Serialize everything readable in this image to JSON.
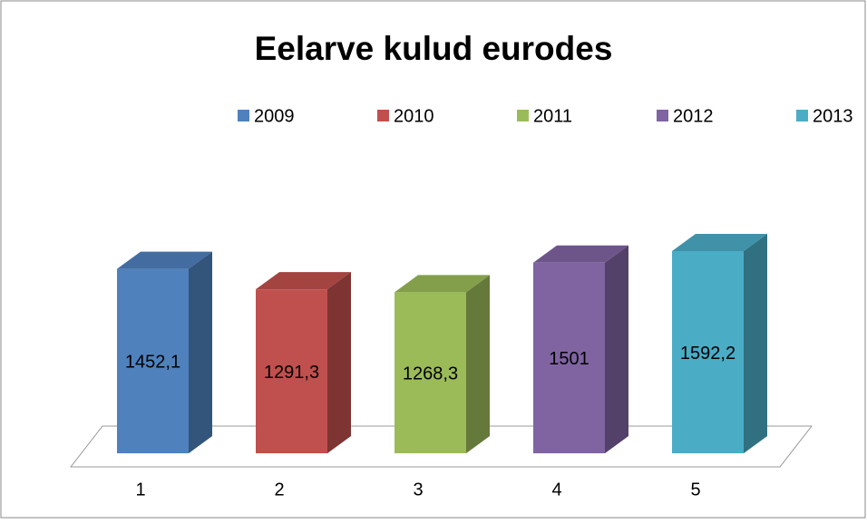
{
  "chart_data": {
    "type": "bar3d",
    "title": "Eelarve kulud eurodes",
    "categories": [
      "1",
      "2",
      "3",
      "4",
      "5"
    ],
    "series": [
      {
        "name": "2009",
        "color": "#4f81bd",
        "values": [
          1452.1,
          null,
          null,
          null,
          null
        ],
        "value_labels": [
          "1452,1",
          null,
          null,
          null,
          null
        ]
      },
      {
        "name": "2010",
        "color": "#c0504d",
        "values": [
          null,
          1291.3,
          null,
          null,
          null
        ],
        "value_labels": [
          null,
          "1291,3",
          null,
          null,
          null
        ]
      },
      {
        "name": "2011",
        "color": "#9bbb59",
        "values": [
          null,
          null,
          1268.3,
          null,
          null
        ],
        "value_labels": [
          null,
          null,
          "1268,3",
          null,
          null
        ]
      },
      {
        "name": "2012",
        "color": "#8064a2",
        "values": [
          null,
          null,
          null,
          1501,
          null
        ],
        "value_labels": [
          null,
          null,
          null,
          "1501",
          null
        ]
      },
      {
        "name": "2013",
        "color": "#4bacc6",
        "values": [
          null,
          null,
          null,
          null,
          1592.2
        ],
        "value_labels": [
          null,
          null,
          null,
          null,
          "1592,2"
        ]
      }
    ]
  }
}
